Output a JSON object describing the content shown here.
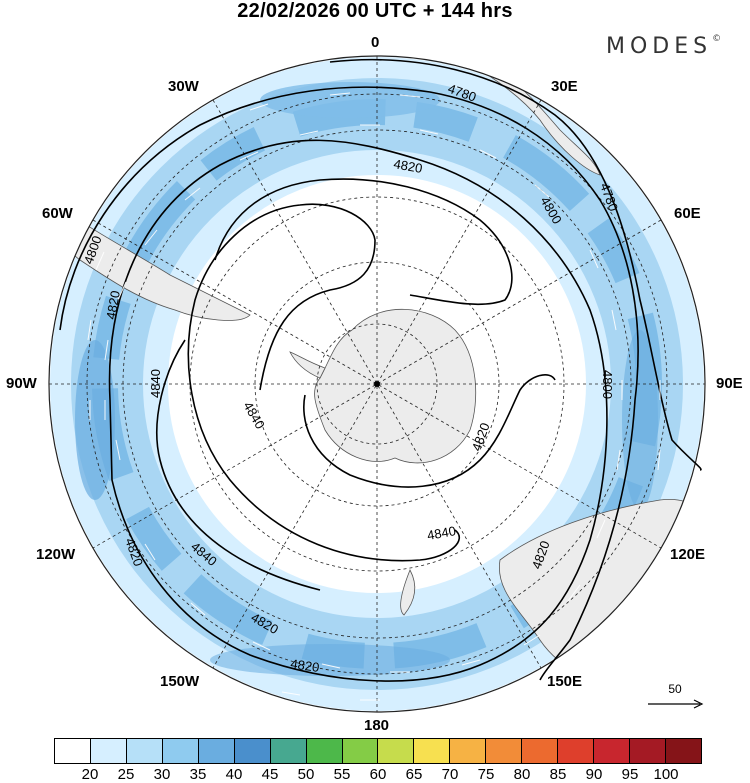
{
  "title": "22/02/2026  00 UTC  + 144 hrs",
  "brand": {
    "name": "MODES",
    "mark": "©"
  },
  "longitude_labels": {
    "n0": "0",
    "n30e": "30E",
    "n60e": "60E",
    "n90e": "90E",
    "n120e": "120E",
    "n150e": "150E",
    "n180": "180",
    "n150w": "150W",
    "n120w": "120W",
    "n90w": "90W",
    "n60w": "60W",
    "n30w": "30W"
  },
  "contour_labels": {
    "outer": [
      "4780",
      "4780",
      "4800",
      "4800",
      "4820",
      "4820"
    ],
    "inner": [
      "4800",
      "4820",
      "4820",
      "4820",
      "4840",
      "4840",
      "4840",
      "4840",
      "4820",
      "4820"
    ]
  },
  "reference_vector": "50",
  "colorbar": {
    "labels": [
      "20",
      "25",
      "30",
      "35",
      "40",
      "45",
      "50",
      "55",
      "60",
      "65",
      "70",
      "75",
      "80",
      "85",
      "90",
      "95",
      "100"
    ],
    "colors": [
      "#ffffff",
      "#d6efff",
      "#b6e0f8",
      "#8fcbef",
      "#6aade0",
      "#4a8fcc",
      "#47a890",
      "#4db84a",
      "#84cc46",
      "#c6dc4c",
      "#f7e050",
      "#f6b244",
      "#f28c38",
      "#ec6a2f",
      "#de3f2c",
      "#c8262e",
      "#a41a24",
      "#851418"
    ]
  },
  "colors": {
    "jet_light": "#cfe9fa",
    "jet_mid": "#9fd0f0",
    "jet_dark": "#6fb2e2",
    "land": "#ececec"
  }
}
